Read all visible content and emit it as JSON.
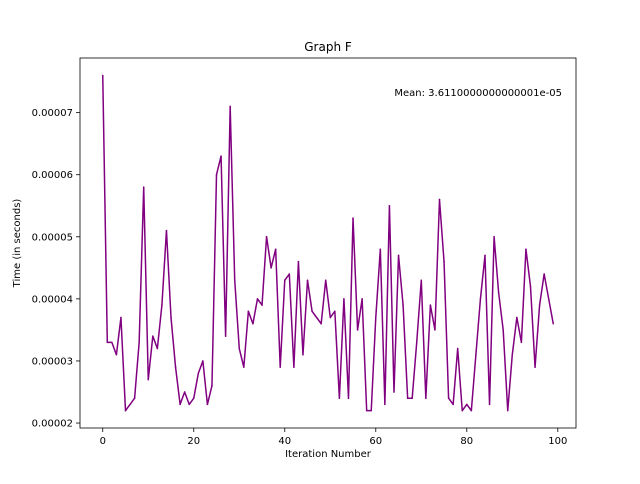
{
  "chart_data": {
    "type": "line",
    "title": "Graph F",
    "xlabel": "Iteration Number",
    "ylabel": "Time (in seconds)",
    "annotation": "Mean: 3.6110000000000001e-05",
    "xlim": [
      -5,
      104
    ],
    "ylim": [
      1.92e-05,
      7.88e-05
    ],
    "x_ticks": [
      0,
      20,
      40,
      60,
      80,
      100
    ],
    "x_tick_labels": [
      "0",
      "20",
      "40",
      "60",
      "80",
      "100"
    ],
    "y_ticks": [
      2e-05,
      3e-05,
      4e-05,
      5e-05,
      6e-05,
      7e-05
    ],
    "y_tick_labels": [
      "0.00002",
      "0.00003",
      "0.00004",
      "0.00005",
      "0.00006",
      "0.00007"
    ],
    "grid": false,
    "line_color": "#800080",
    "series": [
      {
        "x": [
          0,
          1,
          2,
          3,
          4,
          5,
          6,
          7,
          8,
          9,
          10,
          11,
          12,
          13,
          14,
          15,
          16,
          17,
          18,
          19,
          20,
          21,
          22,
          23,
          24,
          25,
          26,
          27,
          28,
          29,
          30,
          31,
          32,
          33,
          34,
          35,
          36,
          37,
          38,
          39,
          40,
          41,
          42,
          43,
          44,
          45,
          46,
          47,
          48,
          49,
          50,
          51,
          52,
          53,
          54,
          55,
          56,
          57,
          58,
          59,
          60,
          61,
          62,
          63,
          64,
          65,
          66,
          67,
          68,
          69,
          70,
          71,
          72,
          73,
          74,
          75,
          76,
          77,
          78,
          79,
          80,
          81,
          82,
          83,
          84,
          85,
          86,
          87,
          88,
          89,
          90,
          91,
          92,
          93,
          94,
          95,
          96,
          97,
          98,
          99
        ],
        "values": [
          7.6e-05,
          3.3e-05,
          3.3e-05,
          3.1e-05,
          3.7e-05,
          2.2e-05,
          2.3e-05,
          2.4e-05,
          3.3e-05,
          5.8e-05,
          2.7e-05,
          3.4e-05,
          3.2e-05,
          3.9e-05,
          5.1e-05,
          3.7e-05,
          2.9e-05,
          2.3e-05,
          2.5e-05,
          2.3e-05,
          2.4e-05,
          2.8e-05,
          3e-05,
          2.3e-05,
          2.6e-05,
          6e-05,
          6.3e-05,
          3.4e-05,
          7.1e-05,
          4.3e-05,
          3.2e-05,
          2.9e-05,
          3.8e-05,
          3.6e-05,
          4e-05,
          3.9e-05,
          5e-05,
          4.5e-05,
          4.8e-05,
          2.9e-05,
          4.3e-05,
          4.4e-05,
          2.9e-05,
          4.6e-05,
          3.1e-05,
          4.3e-05,
          3.8e-05,
          3.7e-05,
          3.6e-05,
          4.3e-05,
          3.7e-05,
          3.8e-05,
          2.4e-05,
          4e-05,
          2.4e-05,
          5.3e-05,
          3.5e-05,
          4e-05,
          2.2e-05,
          2.2e-05,
          3.7e-05,
          4.8e-05,
          2.3e-05,
          5.5e-05,
          2.5e-05,
          4.7e-05,
          3.9e-05,
          2.4e-05,
          2.4e-05,
          3.3e-05,
          4.3e-05,
          2.4e-05,
          3.9e-05,
          3.5e-05,
          5.6e-05,
          4.6e-05,
          2.4e-05,
          2.3e-05,
          3.2e-05,
          2.2e-05,
          2.3e-05,
          2.2e-05,
          3.1e-05,
          4e-05,
          4.7e-05,
          2.3e-05,
          5e-05,
          4.1e-05,
          3.5e-05,
          2.2e-05,
          3.1e-05,
          3.7e-05,
          3.3e-05,
          4.8e-05,
          4.2e-05,
          2.9e-05,
          3.9e-05,
          4.4e-05,
          4e-05,
          3.6e-05
        ]
      }
    ]
  }
}
